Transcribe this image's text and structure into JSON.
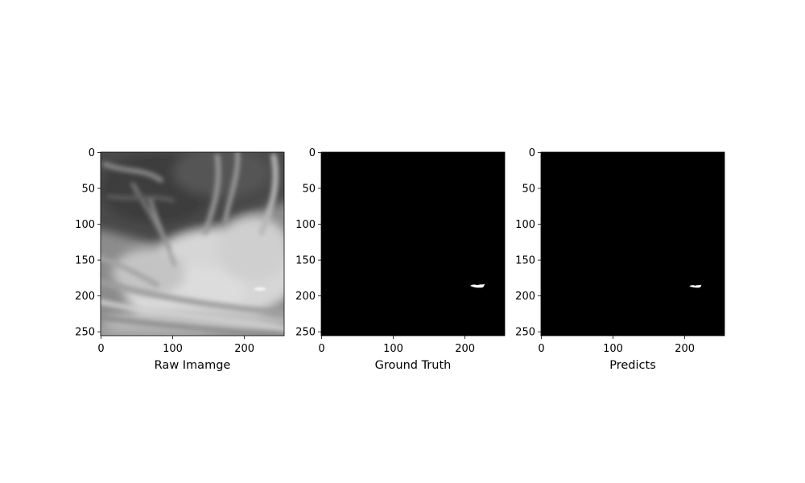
{
  "figure": {
    "background": "#ffffff",
    "axis_color": "#000000",
    "mask_background": "#000000",
    "mask_foreground": "#ffffff"
  },
  "chart_data": [
    {
      "type": "heatmap",
      "content": "grayscale cloud image",
      "xlabel": "Raw Imamge",
      "ylabel": "",
      "xlim": [
        0,
        255
      ],
      "ylim": [
        255,
        0
      ],
      "xticks": [
        0,
        100,
        200
      ],
      "xtick_labels": [
        "0",
        "100",
        "200"
      ],
      "yticks": [
        0,
        50,
        100,
        150,
        200,
        250
      ],
      "ytick_labels": [
        "0",
        "50",
        "100",
        "150",
        "200",
        "250"
      ]
    },
    {
      "type": "heatmap",
      "content": "binary mask",
      "xlabel": "Ground Truth",
      "ylabel": "",
      "xlim": [
        0,
        255
      ],
      "ylim": [
        255,
        0
      ],
      "xticks": [
        0,
        100,
        200
      ],
      "xtick_labels": [
        "0",
        "100",
        "200"
      ],
      "yticks": [
        0,
        50,
        100,
        150,
        200,
        250
      ],
      "ytick_labels": [
        "0",
        "50",
        "100",
        "150",
        "200",
        "250"
      ],
      "mask_blob": {
        "x_min": 208,
        "x_max": 228,
        "y_min": 184,
        "y_max": 189
      }
    },
    {
      "type": "heatmap",
      "content": "binary mask",
      "xlabel": "Predicts",
      "ylabel": "",
      "xlim": [
        0,
        255
      ],
      "ylim": [
        255,
        0
      ],
      "xticks": [
        0,
        100,
        200
      ],
      "xtick_labels": [
        "0",
        "100",
        "200"
      ],
      "yticks": [
        0,
        50,
        100,
        150,
        200,
        250
      ],
      "ytick_labels": [
        "0",
        "50",
        "100",
        "150",
        "200",
        "250"
      ],
      "mask_blob": {
        "x_min": 207,
        "x_max": 224,
        "y_min": 185,
        "y_max": 189
      }
    }
  ]
}
